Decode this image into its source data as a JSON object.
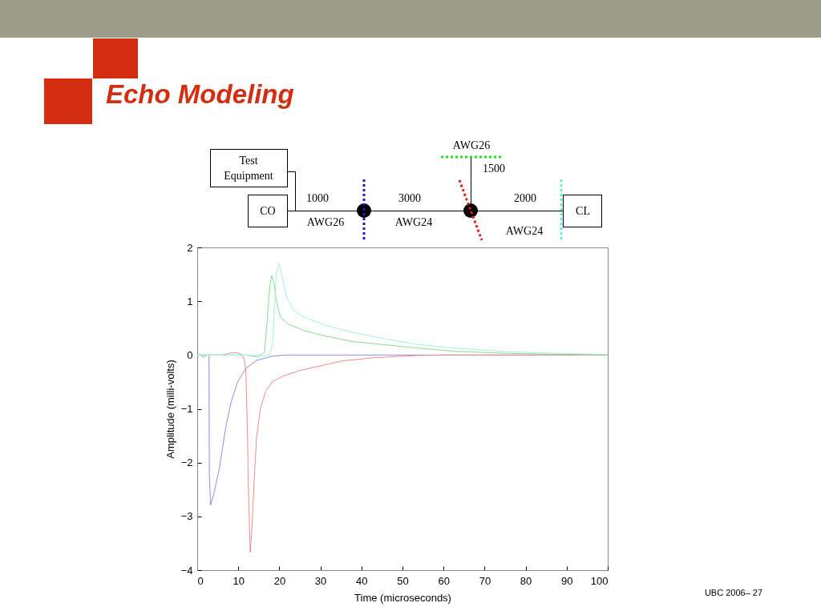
{
  "chart_data": {
    "type": "line",
    "title": "Echo Modeling",
    "xlabel": "Time (microseconds)",
    "ylabel": "Amplitude (milli-volts)",
    "xlim": [
      0,
      100
    ],
    "xticks": [
      0,
      10,
      20,
      30,
      40,
      50,
      60,
      70,
      80,
      90,
      100
    ],
    "ylim": [
      -4,
      2
    ],
    "yticks": [
      -4,
      -3,
      -2,
      -1,
      0,
      1,
      2
    ],
    "grid": false,
    "annotations": [
      "Test Equipment",
      "CO",
      "CL",
      "1000",
      "AWG26",
      "3000",
      "AWG24",
      "2000",
      "AWG24",
      "AWG26",
      "1500",
      "UBC 2006– 27"
    ],
    "series": [
      {
        "color": "#8c8ce6",
        "x": [
          0,
          0.8,
          1.5,
          2.4,
          2.87,
          2.95,
          3.26,
          4.04,
          5.33,
          6.97,
          8.27,
          9.9,
          11.85,
          14.45,
          18.4,
          21.6,
          50,
          100
        ],
        "values": [
          0,
          0,
          -0.04,
          0,
          0,
          -2.2,
          -2.79,
          -2.58,
          -2.13,
          -1.34,
          -0.87,
          -0.49,
          -0.25,
          -0.1,
          -0.02,
          0,
          0,
          0
        ]
      },
      {
        "color": "#ec8c8c",
        "x": [
          0,
          6,
          8.3,
          9.9,
          11,
          11.5,
          11.85,
          12.2,
          12.5,
          12.9,
          13.3,
          13.9,
          14.45,
          15.4,
          16.7,
          18.4,
          21,
          24.9,
          30.1,
          35.3,
          43.1,
          53.5,
          60,
          100
        ],
        "values": [
          0,
          0,
          0.04,
          0.04,
          0,
          -0.1,
          -0.3,
          -1.29,
          -2.58,
          -3.67,
          -3.27,
          -2.28,
          -1.54,
          -0.99,
          -0.67,
          -0.49,
          -0.39,
          -0.29,
          -0.2,
          -0.11,
          -0.05,
          -0.01,
          0,
          0
        ]
      },
      {
        "color": "#8cdc8c",
        "x": [
          0,
          12,
          14,
          15.5,
          16.4,
          17.05,
          17.7,
          18.16,
          18.7,
          19.3,
          20.3,
          22.3,
          26.2,
          31.4,
          37.9,
          44.4,
          53.5,
          62.6,
          75.6,
          100
        ],
        "values": [
          0,
          0,
          -0.02,
          0,
          0.05,
          0.65,
          1.29,
          1.48,
          1.34,
          0.99,
          0.7,
          0.57,
          0.45,
          0.35,
          0.25,
          0.2,
          0.13,
          0.07,
          0.03,
          0
        ]
      },
      {
        "color": "#a6f0e0",
        "x": [
          0,
          12,
          14,
          16,
          17.7,
          18.4,
          18.8,
          19.3,
          19.9,
          20.3,
          21,
          21.9,
          23.6,
          26.2,
          31.4,
          37.9,
          44.4,
          53.5,
          62.6,
          75.6,
          88.7,
          100
        ],
        "values": [
          0,
          0,
          -0.04,
          -0.02,
          0,
          0.25,
          0.9,
          1.54,
          1.69,
          1.59,
          1.34,
          1.05,
          0.82,
          0.7,
          0.55,
          0.42,
          0.32,
          0.2,
          0.13,
          0.06,
          0.03,
          0.01
        ]
      }
    ]
  }
}
